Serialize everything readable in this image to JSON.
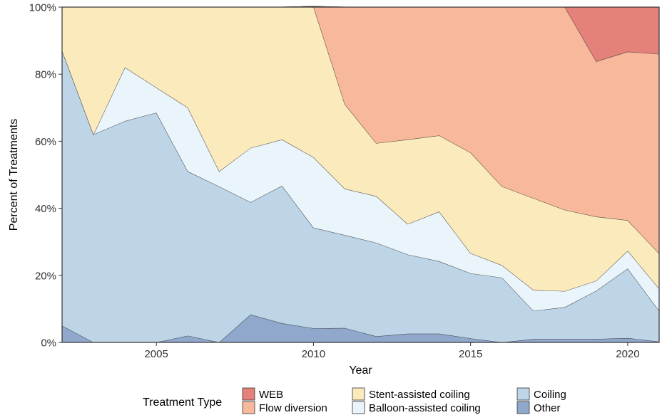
{
  "chart_data": {
    "type": "area",
    "stacked": true,
    "xlabel": "Year",
    "ylabel": "Percent of Treatments",
    "xlim": [
      2002,
      2021
    ],
    "ylim": [
      0,
      100
    ],
    "x_ticks": [
      2005,
      2010,
      2015,
      2020
    ],
    "y_ticks": [
      0,
      20,
      40,
      60,
      80,
      100
    ],
    "y_tick_labels": [
      "0%",
      "20%",
      "40%",
      "60%",
      "80%",
      "100%"
    ],
    "grid": false,
    "x": [
      2002,
      2003,
      2004,
      2005,
      2006,
      2007,
      2008,
      2009,
      2010,
      2011,
      2012,
      2013,
      2014,
      2015,
      2016,
      2017,
      2018,
      2019,
      2020,
      2021
    ],
    "series": [
      {
        "name": "Other",
        "color": "#8FA8CC",
        "values": [
          5,
          0,
          0,
          0,
          2,
          0,
          8.3,
          5.7,
          4.2,
          4.3,
          1.8,
          2.6,
          2.6,
          1.2,
          0,
          1,
          1,
          1,
          1.3,
          0.2
        ]
      },
      {
        "name": "Coiling",
        "color": "#BDD5E7",
        "values": [
          82,
          62,
          66,
          68.5,
          49,
          46.5,
          33.5,
          41,
          30,
          27.7,
          27.9,
          23.6,
          21.6,
          19.4,
          19.3,
          8.4,
          9.5,
          14.4,
          20.7,
          9.2
        ]
      },
      {
        "name": "Balloon-assisted coiling",
        "color": "#EAF4FB",
        "values": [
          0,
          0,
          16,
          7.5,
          19,
          4.5,
          16.2,
          13.8,
          21,
          13.8,
          13.9,
          9.1,
          14.8,
          6,
          3.7,
          6.2,
          4.8,
          3,
          5.3,
          6.6
        ]
      },
      {
        "name": "Stent-assisted coiling",
        "color": "#FBEABC",
        "values": [
          13,
          38,
          18,
          24,
          30,
          49,
          42,
          39.5,
          45,
          25.2,
          15.8,
          25.2,
          22.7,
          30,
          23.5,
          27.4,
          24.2,
          19.1,
          9.1,
          10.5
        ]
      },
      {
        "name": "Flow diversion",
        "color": "#F8B89B",
        "values": [
          0,
          0,
          0,
          0,
          0,
          0,
          0,
          0,
          0,
          29,
          40.6,
          39.5,
          38.3,
          43.4,
          53.5,
          57,
          60.5,
          46.3,
          50.3,
          59.5
        ]
      },
      {
        "name": "WEB",
        "color": "#E4817A",
        "values": [
          0,
          0,
          0,
          0,
          0,
          0,
          0,
          0,
          0,
          0,
          0,
          0,
          0,
          0,
          0,
          0,
          0,
          16.2,
          13.3,
          14
        ]
      }
    ],
    "legend": {
      "title": "Treatment Type",
      "position": "bottom",
      "entries": [
        {
          "label": "WEB",
          "color": "#E4817A"
        },
        {
          "label": "Flow diversion",
          "color": "#F8B89B"
        },
        {
          "label": "Stent-assisted coiling",
          "color": "#FBEABC"
        },
        {
          "label": "Balloon-assisted coiling",
          "color": "#EAF4FB"
        },
        {
          "label": "Coiling",
          "color": "#BDD5E7"
        },
        {
          "label": "Other",
          "color": "#8FA8CC"
        }
      ]
    }
  }
}
